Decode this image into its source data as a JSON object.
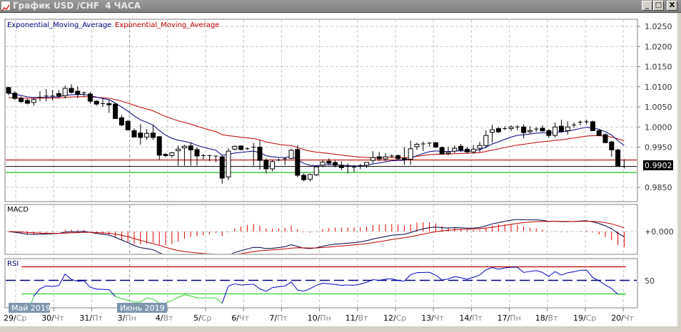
{
  "window": {
    "title": "График USD /CHF  4 ЧАСА",
    "minimize_label": "_",
    "maximize_label": "□",
    "close_label": "X"
  },
  "legend": {
    "fast_ema_label": "Exponential_Moving_Average",
    "slow_ema_label": "Exponential_Moving_Average"
  },
  "price_axis": {
    "ticks": [
      "1.0250",
      "1.0200",
      "1.0150",
      "1.0100",
      "1.0050",
      "1.0000",
      "0.9950",
      "0.9850"
    ],
    "tick_values": [
      1.025,
      1.02,
      1.015,
      1.01,
      1.005,
      1.0,
      0.995,
      0.985
    ],
    "current_price_label": "0.9902"
  },
  "macd": {
    "label": "MACD",
    "zero_label": "+0.000"
  },
  "rsi": {
    "label": "RSI",
    "mid_label": "50",
    "levels": [
      70,
      50,
      30
    ]
  },
  "time_axis": {
    "months": [
      "Май 2019",
      "Июнь 2019"
    ],
    "dates": [
      {
        "day": "29/",
        "dow": "Ср"
      },
      {
        "day": "30/",
        "dow": "Чт"
      },
      {
        "day": "31/",
        "dow": "Пт"
      },
      {
        "day": "3/",
        "dow": "Пн"
      },
      {
        "day": "4/",
        "dow": "Вт"
      },
      {
        "day": "5/",
        "dow": "Ср"
      },
      {
        "day": "6/",
        "dow": "Чт"
      },
      {
        "day": "7/",
        "dow": "Пт"
      },
      {
        "day": "10/",
        "dow": "Пн"
      },
      {
        "day": "11/",
        "dow": "Вт"
      },
      {
        "day": "12/",
        "dow": "Ср"
      },
      {
        "day": "13/",
        "dow": "Чт"
      },
      {
        "day": "14/",
        "dow": "Пт"
      },
      {
        "day": "17/",
        "dow": "Пн"
      },
      {
        "day": "18/",
        "dow": "Вт"
      },
      {
        "day": "19/",
        "dow": "Ср"
      },
      {
        "day": "20/",
        "dow": "Чт"
      }
    ]
  },
  "colors": {
    "fast_ema": "#000080",
    "slow_ema": "#c00000",
    "level_red": "#c00000",
    "level_green": "#20c020",
    "macd_line": "#000040",
    "signal_line": "#c00000",
    "histogram": "#e00000",
    "rsi": "#0000c0",
    "rsi_oversold": "#30d030"
  },
  "chart_data": {
    "type": "candlestick",
    "symbol": "USD/CHF",
    "timeframe": "4 ЧАСА",
    "ylim": [
      0.982,
      1.027
    ],
    "ema_periods": [
      10,
      30
    ],
    "horizontal_levels": {
      "red": 0.9918,
      "black": 0.9902,
      "green": 0.9887
    },
    "macd_params": [
      12,
      26,
      9
    ],
    "rsi_period": 14,
    "ohlc": [
      [
        1.0098,
        1.01,
        1.0079,
        1.0084
      ],
      [
        1.0084,
        1.0089,
        1.0067,
        1.0071
      ],
      [
        1.0071,
        1.0076,
        1.006,
        1.0063
      ],
      [
        1.0066,
        1.007,
        1.0056,
        1.0059
      ],
      [
        1.0061,
        1.0072,
        1.0053,
        1.0068
      ],
      [
        1.0072,
        1.0089,
        1.0064,
        1.0074
      ],
      [
        1.0076,
        1.0094,
        1.0064,
        1.0077
      ],
      [
        1.0077,
        1.0092,
        1.0066,
        1.0076
      ],
      [
        1.0083,
        1.0092,
        1.0071,
        1.0077
      ],
      [
        1.0078,
        1.0103,
        1.0071,
        1.0096
      ],
      [
        1.0096,
        1.0106,
        1.0083,
        1.0086
      ],
      [
        1.0089,
        1.0101,
        1.0072,
        1.0082
      ],
      [
        1.0085,
        1.0088,
        1.0076,
        1.0083
      ],
      [
        1.0082,
        1.0087,
        1.0058,
        1.0064
      ],
      [
        1.0064,
        1.0067,
        1.0053,
        1.0057
      ],
      [
        1.0058,
        1.0071,
        1.005,
        1.0056
      ],
      [
        1.0058,
        1.0067,
        1.0035,
        1.0055
      ],
      [
        1.0057,
        1.006,
        1.002,
        1.0021
      ],
      [
        1.0023,
        1.003,
        1.0002,
        1.0005
      ],
      [
        1.0014,
        1.0018,
        0.9991,
        0.9993
      ],
      [
        0.9991,
        0.9996,
        0.9974,
        0.9975
      ],
      [
        0.9985,
        1.0007,
        0.9956,
        0.9974
      ],
      [
        0.9975,
        0.9995,
        0.9968,
        0.9984
      ],
      [
        0.9985,
        1.0005,
        0.9968,
        0.9974
      ],
      [
        0.9976,
        0.9977,
        0.9919,
        0.993
      ],
      [
        0.9932,
        0.9935,
        0.9925,
        0.9929
      ],
      [
        0.9929,
        0.9938,
        0.9924,
        0.9936
      ],
      [
        0.9941,
        0.9954,
        0.9904,
        0.9945
      ],
      [
        0.9948,
        0.9956,
        0.9904,
        0.9952
      ],
      [
        0.9953,
        0.9962,
        0.9904,
        0.9943
      ],
      [
        0.9944,
        0.9949,
        0.9904,
        0.9928
      ],
      [
        0.9929,
        0.9933,
        0.992,
        0.9928
      ],
      [
        0.9929,
        0.9931,
        0.9915,
        0.9928
      ],
      [
        0.9928,
        0.9929,
        0.9913,
        0.9927
      ],
      [
        0.9926,
        0.9929,
        0.9859,
        0.9873
      ],
      [
        0.9876,
        0.9947,
        0.9868,
        0.994
      ],
      [
        0.9945,
        0.9954,
        0.9942,
        0.9952
      ],
      [
        0.9953,
        0.9954,
        0.9942,
        0.9944
      ],
      [
        0.9946,
        0.9949,
        0.9943,
        0.9946
      ],
      [
        0.995,
        0.996,
        0.9904,
        0.9948
      ],
      [
        0.995,
        0.9967,
        0.9894,
        0.9917
      ],
      [
        0.9917,
        0.9922,
        0.9885,
        0.9896
      ],
      [
        0.9896,
        0.9918,
        0.989,
        0.9914
      ],
      [
        0.9918,
        0.9922,
        0.9915,
        0.9918
      ],
      [
        0.992,
        0.9925,
        0.9905,
        0.9921
      ],
      [
        0.9922,
        0.9946,
        0.992,
        0.9942
      ],
      [
        0.9944,
        0.9955,
        0.9875,
        0.988
      ],
      [
        0.988,
        0.9885,
        0.9865,
        0.9869
      ],
      [
        0.987,
        0.9884,
        0.9865,
        0.9882
      ],
      [
        0.9881,
        0.9904,
        0.9878,
        0.9901
      ],
      [
        0.9905,
        0.9918,
        0.99,
        0.9913
      ],
      [
        0.9915,
        0.9922,
        0.9905,
        0.991
      ],
      [
        0.9912,
        0.9917,
        0.99,
        0.9905
      ],
      [
        0.9905,
        0.9915,
        0.9893,
        0.9899
      ],
      [
        0.9903,
        0.991,
        0.9885,
        0.9901
      ],
      [
        0.99,
        0.9906,
        0.9888,
        0.9899
      ],
      [
        0.9903,
        0.9908,
        0.9895,
        0.9904
      ],
      [
        0.9905,
        0.9912,
        0.9898,
        0.9912
      ],
      [
        0.9917,
        0.994,
        0.991,
        0.9924
      ],
      [
        0.9926,
        0.9938,
        0.9915,
        0.9921
      ],
      [
        0.9921,
        0.9935,
        0.9915,
        0.9926
      ],
      [
        0.9928,
        0.9932,
        0.9924,
        0.9928
      ],
      [
        0.9929,
        0.9932,
        0.9917,
        0.9921
      ],
      [
        0.9922,
        0.995,
        0.9906,
        0.9919
      ],
      [
        0.992,
        0.9966,
        0.9906,
        0.9946
      ],
      [
        0.9951,
        0.9961,
        0.9943,
        0.9957
      ],
      [
        0.9958,
        0.9964,
        0.994,
        0.9958
      ],
      [
        0.996,
        0.9962,
        0.9951,
        0.9959
      ],
      [
        0.9961,
        0.9963,
        0.9948,
        0.995
      ],
      [
        0.9949,
        0.9952,
        0.9931,
        0.9933
      ],
      [
        0.9934,
        0.9951,
        0.993,
        0.9937
      ],
      [
        0.994,
        0.9954,
        0.9935,
        0.9947
      ],
      [
        0.9952,
        0.9958,
        0.9938,
        0.9943
      ],
      [
        0.9945,
        0.995,
        0.9935,
        0.9938
      ],
      [
        0.9938,
        0.9955,
        0.9934,
        0.9945
      ],
      [
        0.9947,
        0.9963,
        0.9937,
        0.9954
      ],
      [
        0.9954,
        0.9992,
        0.9947,
        0.9979
      ],
      [
        0.9987,
        1.0005,
        0.9961,
        0.9993
      ],
      [
        0.9996,
        1.0,
        0.9985,
        0.9988
      ],
      [
        0.9996,
        1.0002,
        0.9992,
        0.9996
      ],
      [
        0.9996,
        1.0004,
        0.999,
        1.0
      ],
      [
        1.0,
        1.0005,
        0.9992,
        1.0
      ],
      [
        1.0,
        1.0007,
        0.9972,
        0.9986
      ],
      [
        0.9988,
        1.0002,
        0.9984,
        0.9991
      ],
      [
        0.9995,
        1.0,
        0.9988,
        0.9995
      ],
      [
        0.9997,
        1.0004,
        0.999,
        0.999
      ],
      [
        0.9991,
        0.9995,
        0.9973,
        0.9979
      ],
      [
        0.9979,
        1.0011,
        0.9974,
        1.0
      ],
      [
        1.0002,
        1.0018,
        0.9986,
        0.9989
      ],
      [
        0.9991,
        1.0014,
        0.9981,
        1.0
      ],
      [
        1.0005,
        1.0011,
        0.9998,
        1.0005
      ],
      [
        1.0011,
        1.0016,
        1.0004,
        1.0012
      ],
      [
        1.0013,
        1.0018,
        1.0007,
        1.0013
      ],
      [
        1.0013,
        1.0016,
        0.999,
        0.9991
      ],
      [
        0.9991,
        0.9994,
        0.9977,
        0.9979
      ],
      [
        0.9981,
        0.9984,
        0.996,
        0.9961
      ],
      [
        0.9963,
        0.9965,
        0.9926,
        0.9943
      ],
      [
        0.9943,
        0.9946,
        0.9902,
        0.9902
      ],
      [
        0.9902,
        0.992,
        0.9897,
        0.9902
      ]
    ]
  }
}
